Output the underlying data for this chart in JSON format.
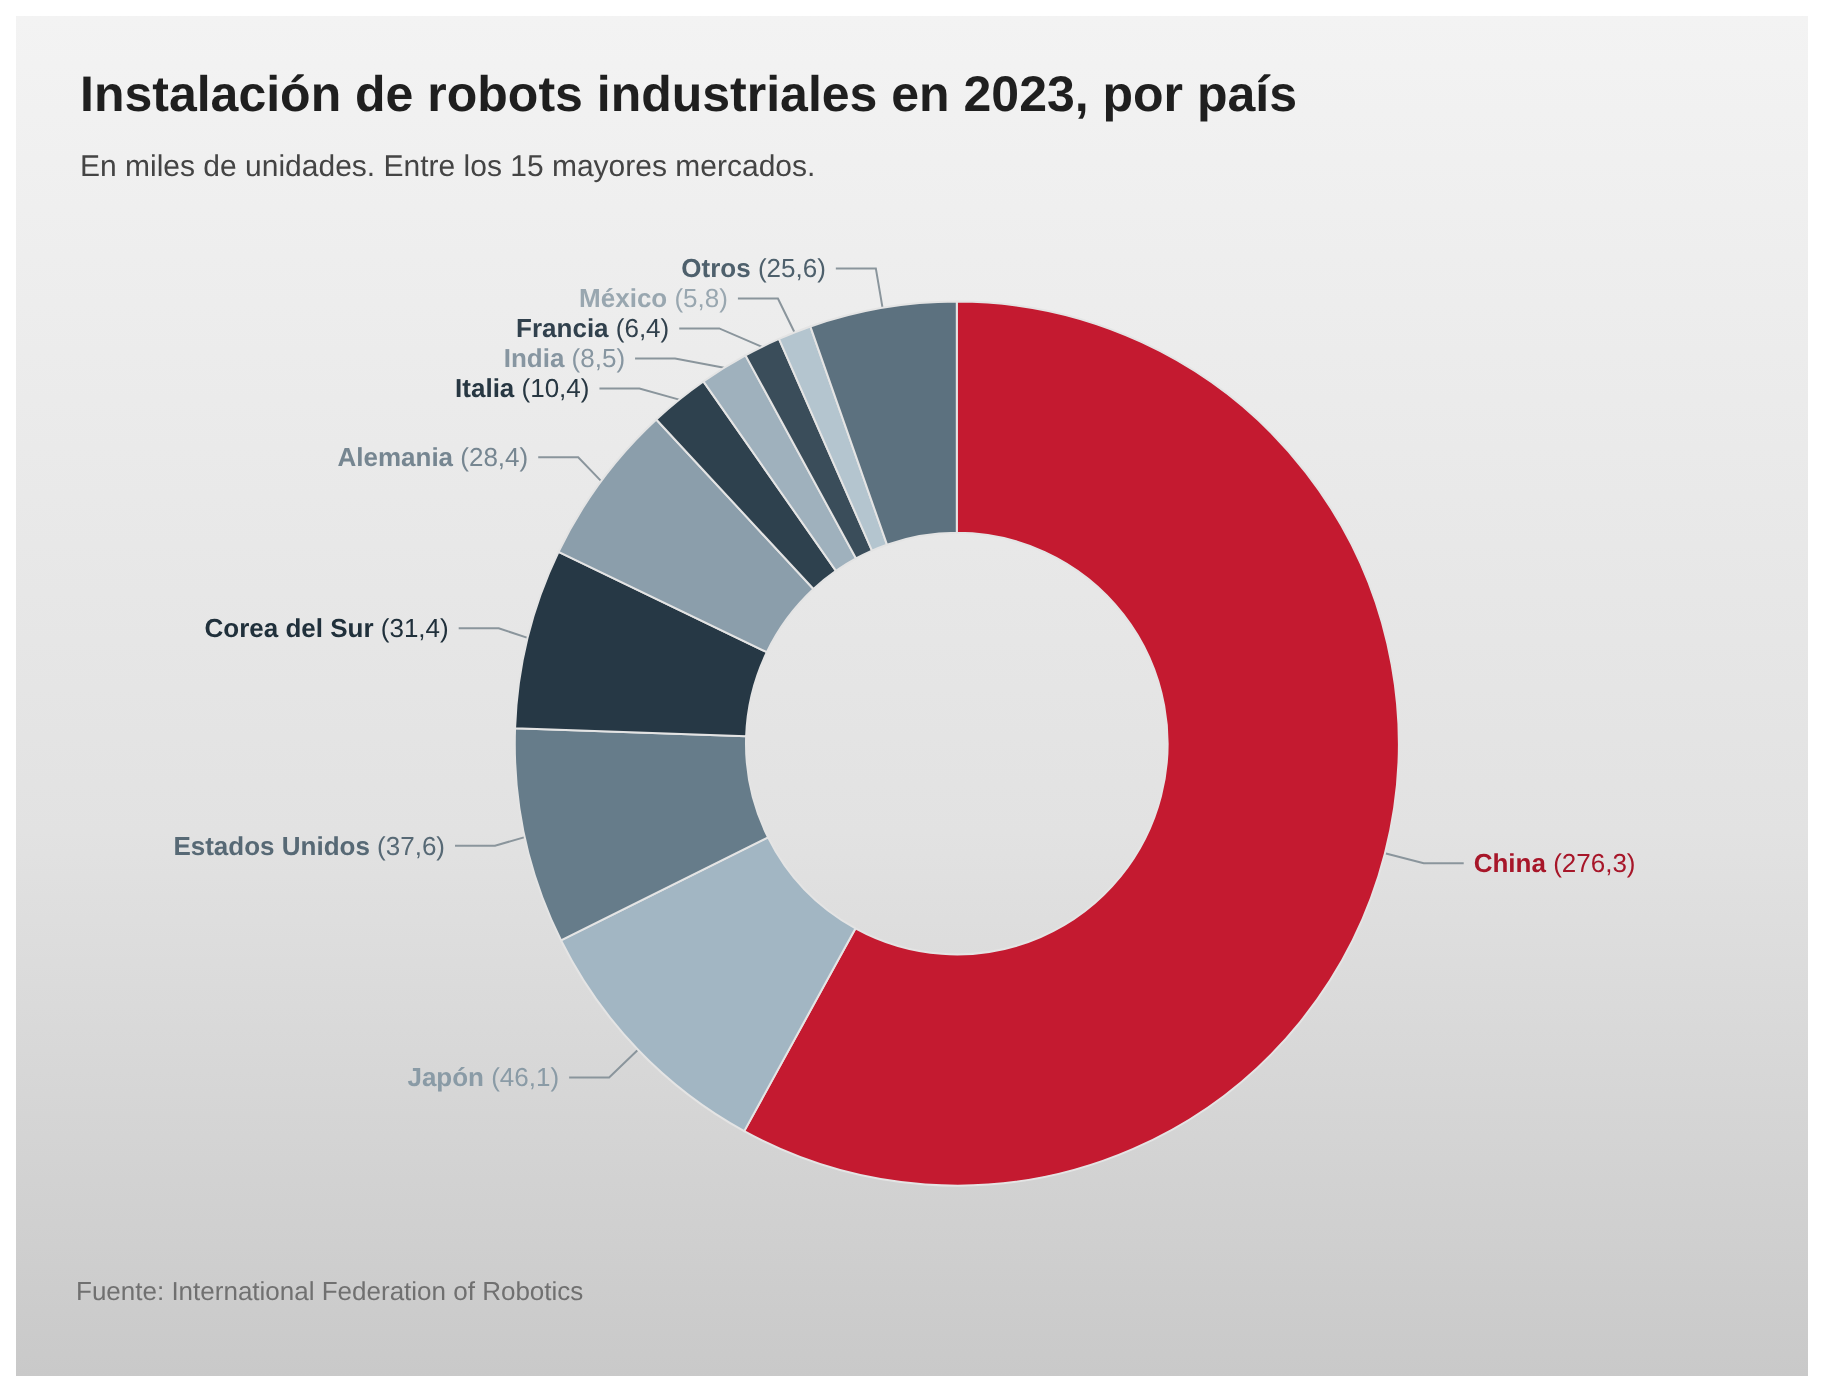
{
  "chart_data": {
    "type": "donut",
    "title": "Instalación de robots industriales en 2023, por país",
    "subtitle": "En miles de unidades. Entre los 15 mayores mercados.",
    "categories": [
      "China",
      "Japón",
      "Estados Unidos",
      "Corea del Sur",
      "Alemania",
      "Italia",
      "India",
      "Francia",
      "México",
      "Otros"
    ],
    "values": [
      276.3,
      46.1,
      37.6,
      31.4,
      28.4,
      10.4,
      8.5,
      6.4,
      5.8,
      25.6
    ],
    "value_labels": [
      "(276,3)",
      "(46,1)",
      "(37,6)",
      "(31,4)",
      "(28,4)",
      "(10,4)",
      "(8,5)",
      "(6,4)",
      "(5,8)",
      "(25,6)"
    ],
    "colors": [
      "#c41a30",
      "#a2b6c3",
      "#667c8a",
      "#263845",
      "#8b9eab",
      "#2e414e",
      "#9fb1bd",
      "#3a4d5a",
      "#b4c5cf",
      "#5c717f"
    ],
    "annotations": [
      "Fuente: International Federation of Robotics"
    ],
    "legend": false
  }
}
